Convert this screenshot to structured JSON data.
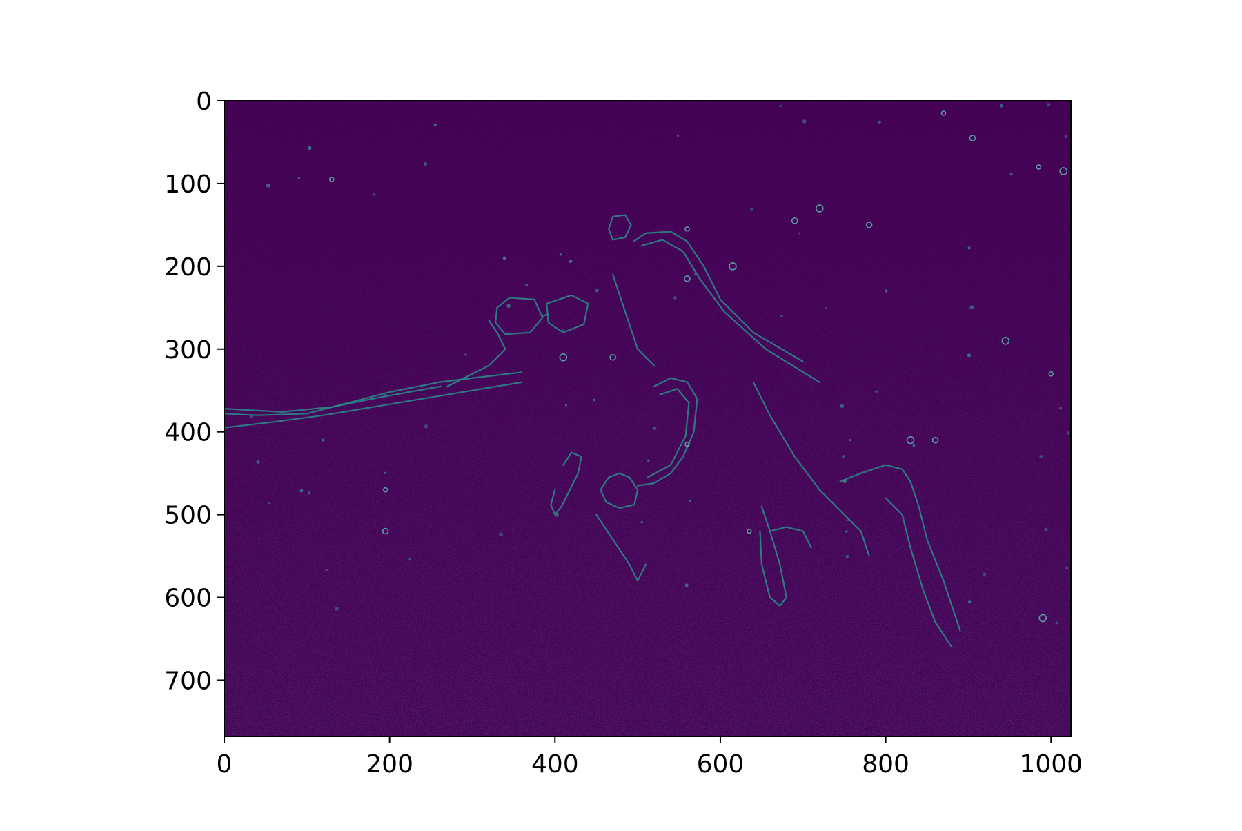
{
  "chart_data": {
    "type": "heatmap",
    "title": "",
    "xlabel": "",
    "ylabel": "",
    "colormap": "viridis",
    "image_extent": {
      "width": 1024,
      "height": 768
    },
    "xlim": [
      0,
      1024
    ],
    "ylim": [
      768,
      0
    ],
    "y_axis_inverted": true,
    "grid": false,
    "legend": "none",
    "x_ticks": [
      0,
      200,
      400,
      600,
      800,
      1000
    ],
    "x_tick_labels": [
      "0",
      "200",
      "400",
      "600",
      "800",
      "1000"
    ],
    "y_ticks": [
      0,
      100,
      200,
      300,
      400,
      500,
      600,
      700
    ],
    "y_tick_labels": [
      "0",
      "100",
      "200",
      "300",
      "400",
      "500",
      "600",
      "700"
    ],
    "background_color": "#440154",
    "edge_color": "#2a8c8c",
    "content": "edge-magnitude map of an underwater photograph showing a scuba diver with mask, regulator and arm outlines, floating particles, and a textured sandy seabed"
  }
}
